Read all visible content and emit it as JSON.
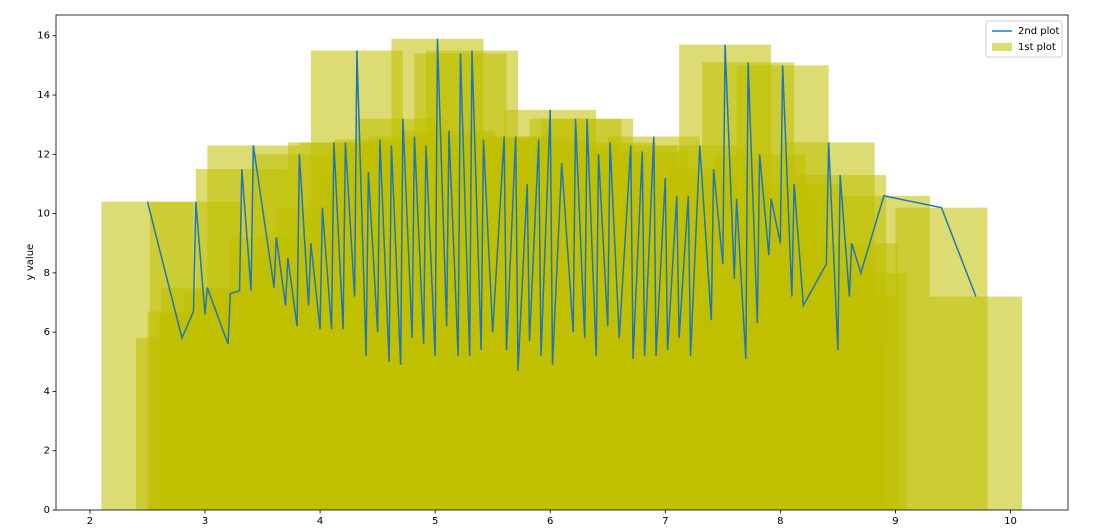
{
  "chart_data": {
    "type": "bar+line",
    "ylabel": "y value",
    "x": [
      2.5,
      2.8,
      2.9,
      2.92,
      3.0,
      3.02,
      3.2,
      3.22,
      3.3,
      3.32,
      3.4,
      3.42,
      3.6,
      3.62,
      3.7,
      3.72,
      3.8,
      3.82,
      3.9,
      3.92,
      4.0,
      4.02,
      4.1,
      4.12,
      4.2,
      4.22,
      4.3,
      4.32,
      4.4,
      4.42,
      4.5,
      4.52,
      4.6,
      4.62,
      4.7,
      4.72,
      4.8,
      4.82,
      4.9,
      4.92,
      5.0,
      5.02,
      5.1,
      5.12,
      5.2,
      5.22,
      5.3,
      5.32,
      5.4,
      5.42,
      5.5,
      5.6,
      5.62,
      5.7,
      5.72,
      5.8,
      5.82,
      5.9,
      5.92,
      6.0,
      6.02,
      6.1,
      6.2,
      6.22,
      6.3,
      6.32,
      6.4,
      6.42,
      6.5,
      6.52,
      6.6,
      6.7,
      6.72,
      6.8,
      6.82,
      6.9,
      6.92,
      7.0,
      7.02,
      7.1,
      7.12,
      7.2,
      7.22,
      7.3,
      7.4,
      7.42,
      7.5,
      7.52,
      7.6,
      7.62,
      7.7,
      7.72,
      7.8,
      7.82,
      7.9,
      7.92,
      8.0,
      8.02,
      8.1,
      8.12,
      8.2,
      8.4,
      8.42,
      8.5,
      8.52,
      8.6,
      8.62,
      8.7,
      8.9,
      9.4,
      9.7
    ],
    "series": [
      {
        "name": "2nd plot",
        "kind": "line",
        "color": "#1f77b4",
        "values": [
          10.4,
          5.8,
          6.7,
          10.4,
          6.6,
          7.5,
          5.6,
          7.3,
          7.4,
          11.5,
          7.4,
          12.3,
          7.5,
          9.2,
          6.9,
          8.5,
          6.2,
          12.0,
          6.9,
          9.0,
          6.1,
          10.2,
          6.1,
          12.4,
          6.1,
          12.4,
          7.2,
          15.5,
          5.2,
          11.4,
          6.0,
          12.5,
          5.0,
          12.3,
          4.9,
          13.2,
          5.8,
          12.6,
          5.6,
          12.3,
          5.2,
          15.9,
          6.2,
          12.8,
          5.2,
          15.4,
          5.2,
          15.5,
          5.4,
          12.5,
          6.0,
          12.6,
          5.4,
          12.6,
          4.7,
          11.0,
          5.7,
          12.5,
          5.2,
          13.5,
          4.9,
          11.7,
          6.0,
          13.2,
          5.8,
          13.2,
          5.2,
          12.0,
          6.2,
          12.4,
          5.8,
          12.3,
          5.1,
          12.1,
          5.2,
          12.6,
          5.2,
          11.2,
          5.4,
          10.6,
          5.8,
          10.6,
          5.2,
          12.3,
          6.4,
          11.5,
          8.3,
          15.7,
          7.8,
          10.5,
          5.1,
          15.1,
          6.3,
          12.0,
          8.6,
          10.5,
          9.0,
          15.0,
          7.2,
          11.0,
          6.9,
          8.3,
          12.4,
          5.4,
          11.3,
          7.2,
          9.0,
          8.0,
          10.6,
          10.2,
          7.2
        ]
      },
      {
        "name": "1st plot",
        "kind": "bar",
        "color": "#bfbf00",
        "values": [
          10.4,
          5.8,
          6.7,
          10.4,
          6.6,
          7.5,
          5.6,
          7.3,
          7.4,
          11.5,
          7.4,
          12.3,
          7.5,
          9.2,
          6.9,
          8.5,
          6.2,
          12.0,
          6.9,
          9.0,
          6.1,
          10.2,
          6.1,
          12.4,
          6.1,
          12.4,
          7.2,
          15.5,
          5.2,
          11.4,
          6.0,
          12.5,
          5.0,
          12.3,
          4.9,
          13.2,
          5.8,
          12.6,
          5.6,
          12.3,
          5.2,
          15.9,
          6.2,
          12.8,
          5.2,
          15.4,
          5.2,
          15.5,
          5.4,
          12.5,
          6.0,
          12.6,
          5.4,
          12.6,
          4.7,
          11.0,
          5.7,
          12.5,
          5.2,
          13.5,
          4.9,
          11.7,
          6.0,
          13.2,
          5.8,
          13.2,
          5.2,
          12.0,
          6.2,
          12.4,
          5.8,
          12.3,
          5.1,
          12.1,
          5.2,
          12.6,
          5.2,
          11.2,
          5.4,
          10.6,
          5.8,
          10.6,
          5.2,
          12.3,
          6.4,
          11.5,
          8.3,
          15.7,
          7.8,
          10.5,
          5.1,
          15.1,
          6.3,
          12.0,
          8.6,
          10.5,
          9.0,
          15.0,
          7.2,
          11.0,
          6.9,
          8.3,
          12.4,
          5.4,
          11.3,
          7.2,
          9.0,
          8.0,
          10.6,
          10.2,
          7.2
        ]
      }
    ],
    "bar_width": 0.8,
    "bar_alpha": 0.55,
    "xlim": [
      1.705,
      10.5
    ],
    "ylim": [
      0,
      16.7
    ],
    "xticks": [
      2,
      3,
      4,
      5,
      6,
      7,
      8,
      9,
      10
    ],
    "yticks": [
      0,
      2,
      4,
      6,
      8,
      10,
      12,
      14,
      16
    ],
    "legend": "upper right"
  }
}
